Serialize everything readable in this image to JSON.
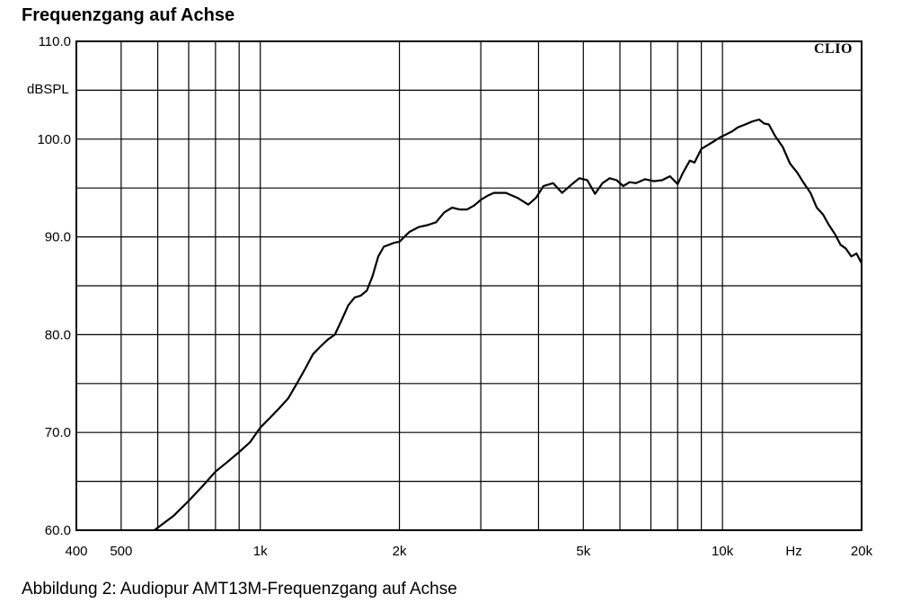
{
  "title": "Frequenzgang auf Achse",
  "caption": "Abbildung 2: Audiopur AMT13M-Frequenzgang auf Achse",
  "y_unit": "dBSPL",
  "x_unit": "Hz",
  "brand": "CLIO",
  "chart_data": {
    "type": "line",
    "xscale": "log",
    "xlim": [
      400,
      20000
    ],
    "ylim": [
      60,
      110
    ],
    "grid": true,
    "x_major_ticks": [
      400,
      500,
      1000,
      2000,
      5000,
      10000,
      20000
    ],
    "x_tick_labels": [
      "400",
      "500",
      "1k",
      "2k",
      "5k",
      "10k",
      "20k"
    ],
    "x_minor_gridlines": [
      600,
      700,
      800,
      900,
      3000,
      4000,
      6000,
      7000,
      8000,
      9000
    ],
    "y_ticks": [
      60,
      70,
      80,
      90,
      100,
      110
    ],
    "y_tick_labels": [
      "60.0",
      "70.0",
      "80.0",
      "90.0",
      "100.0",
      "110.0"
    ],
    "y_minor_gridlines": [
      65,
      75,
      85,
      95,
      105
    ],
    "series": [
      {
        "x": [
          590,
          650,
          700,
          750,
          800,
          850,
          900,
          950,
          1000,
          1050,
          1100,
          1150,
          1200,
          1250,
          1300,
          1350,
          1400,
          1450,
          1500,
          1550,
          1600,
          1650,
          1700,
          1750,
          1800,
          1850,
          1900,
          1950,
          2000,
          2100,
          2200,
          2300,
          2400,
          2500,
          2600,
          2700,
          2800,
          2900,
          3000,
          3100,
          3200,
          3400,
          3600,
          3800,
          3950,
          4100,
          4300,
          4500,
          4700,
          4900,
          5100,
          5300,
          5500,
          5700,
          5900,
          6100,
          6300,
          6500,
          6800,
          7100,
          7400,
          7700,
          8000,
          8200,
          8500,
          8700,
          9000,
          9300,
          9600,
          9900,
          10200,
          10500,
          10800,
          11200,
          11600,
          12000,
          12300,
          12600,
          13000,
          13500,
          14000,
          14500,
          15000,
          15500,
          16000,
          16500,
          17000,
          17500,
          18000,
          18500,
          19000,
          19500,
          20000
        ],
        "y": [
          60.0,
          61.5,
          63.0,
          64.5,
          66.0,
          67.0,
          68.0,
          69.0,
          70.5,
          71.5,
          72.5,
          73.5,
          75.0,
          76.5,
          78.0,
          78.8,
          79.5,
          80.0,
          81.5,
          83.0,
          83.8,
          84.0,
          84.5,
          86.0,
          88.0,
          89.0,
          89.2,
          89.4,
          89.5,
          90.5,
          91.0,
          91.2,
          91.5,
          92.5,
          93.0,
          92.8,
          92.8,
          93.2,
          93.8,
          94.2,
          94.5,
          94.5,
          94.0,
          93.3,
          94.0,
          95.2,
          95.5,
          94.5,
          95.3,
          96.0,
          95.8,
          94.4,
          95.5,
          96.0,
          95.8,
          95.2,
          95.6,
          95.5,
          95.9,
          95.7,
          95.8,
          96.2,
          95.4,
          96.5,
          97.8,
          97.6,
          99.0,
          99.4,
          99.8,
          100.2,
          100.5,
          100.8,
          101.2,
          101.5,
          101.8,
          102.0,
          101.6,
          101.5,
          100.3,
          99.2,
          97.5,
          96.6,
          95.5,
          94.5,
          93.0,
          92.3,
          91.2,
          90.3,
          89.2,
          88.8,
          88.0,
          88.3,
          87.3
        ]
      }
    ]
  }
}
